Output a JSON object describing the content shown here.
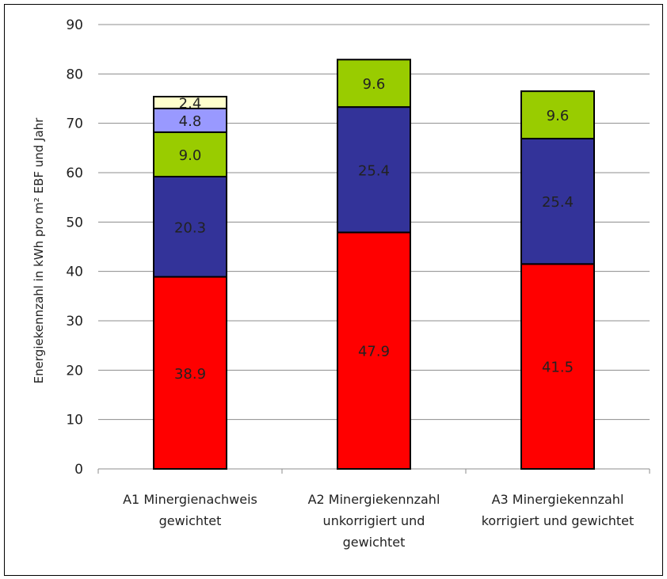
{
  "chart_data": {
    "type": "bar",
    "stacked": true,
    "title": "",
    "xlabel": "",
    "ylabel": "Energiekennzahl in kWh pro m² EBF und Jahr",
    "ylim": [
      0,
      90
    ],
    "yticks": [
      0,
      10,
      20,
      30,
      40,
      50,
      60,
      70,
      80,
      90
    ],
    "grid": true,
    "categories": [
      [
        "A1 Minergienachweis",
        "gewichtet"
      ],
      [
        "A2 Minergiekennzahl",
        "unkorrigiert und",
        "gewichtet"
      ],
      [
        "A3 Minergiekennzahl",
        "korrigiert und gewichtet"
      ]
    ],
    "series": [
      {
        "color": "#ff0000",
        "values": [
          38.9,
          47.9,
          41.5
        ],
        "labels": [
          "38.9",
          "47.9",
          "41.5"
        ]
      },
      {
        "color": "#333399",
        "values": [
          20.3,
          25.4,
          25.4
        ],
        "labels": [
          "20.3",
          "25.4",
          "25.4"
        ]
      },
      {
        "color": "#99cc00",
        "values": [
          9.0,
          9.6,
          9.6
        ],
        "labels": [
          "9.0",
          "9.6",
          "9.6"
        ]
      },
      {
        "color": "#9999ff",
        "values": [
          4.8,
          0,
          0
        ],
        "labels": [
          "4.8",
          "",
          ""
        ]
      },
      {
        "color": "#ffffcc",
        "values": [
          2.4,
          0,
          0
        ],
        "labels": [
          "2.4",
          "",
          ""
        ]
      }
    ]
  }
}
